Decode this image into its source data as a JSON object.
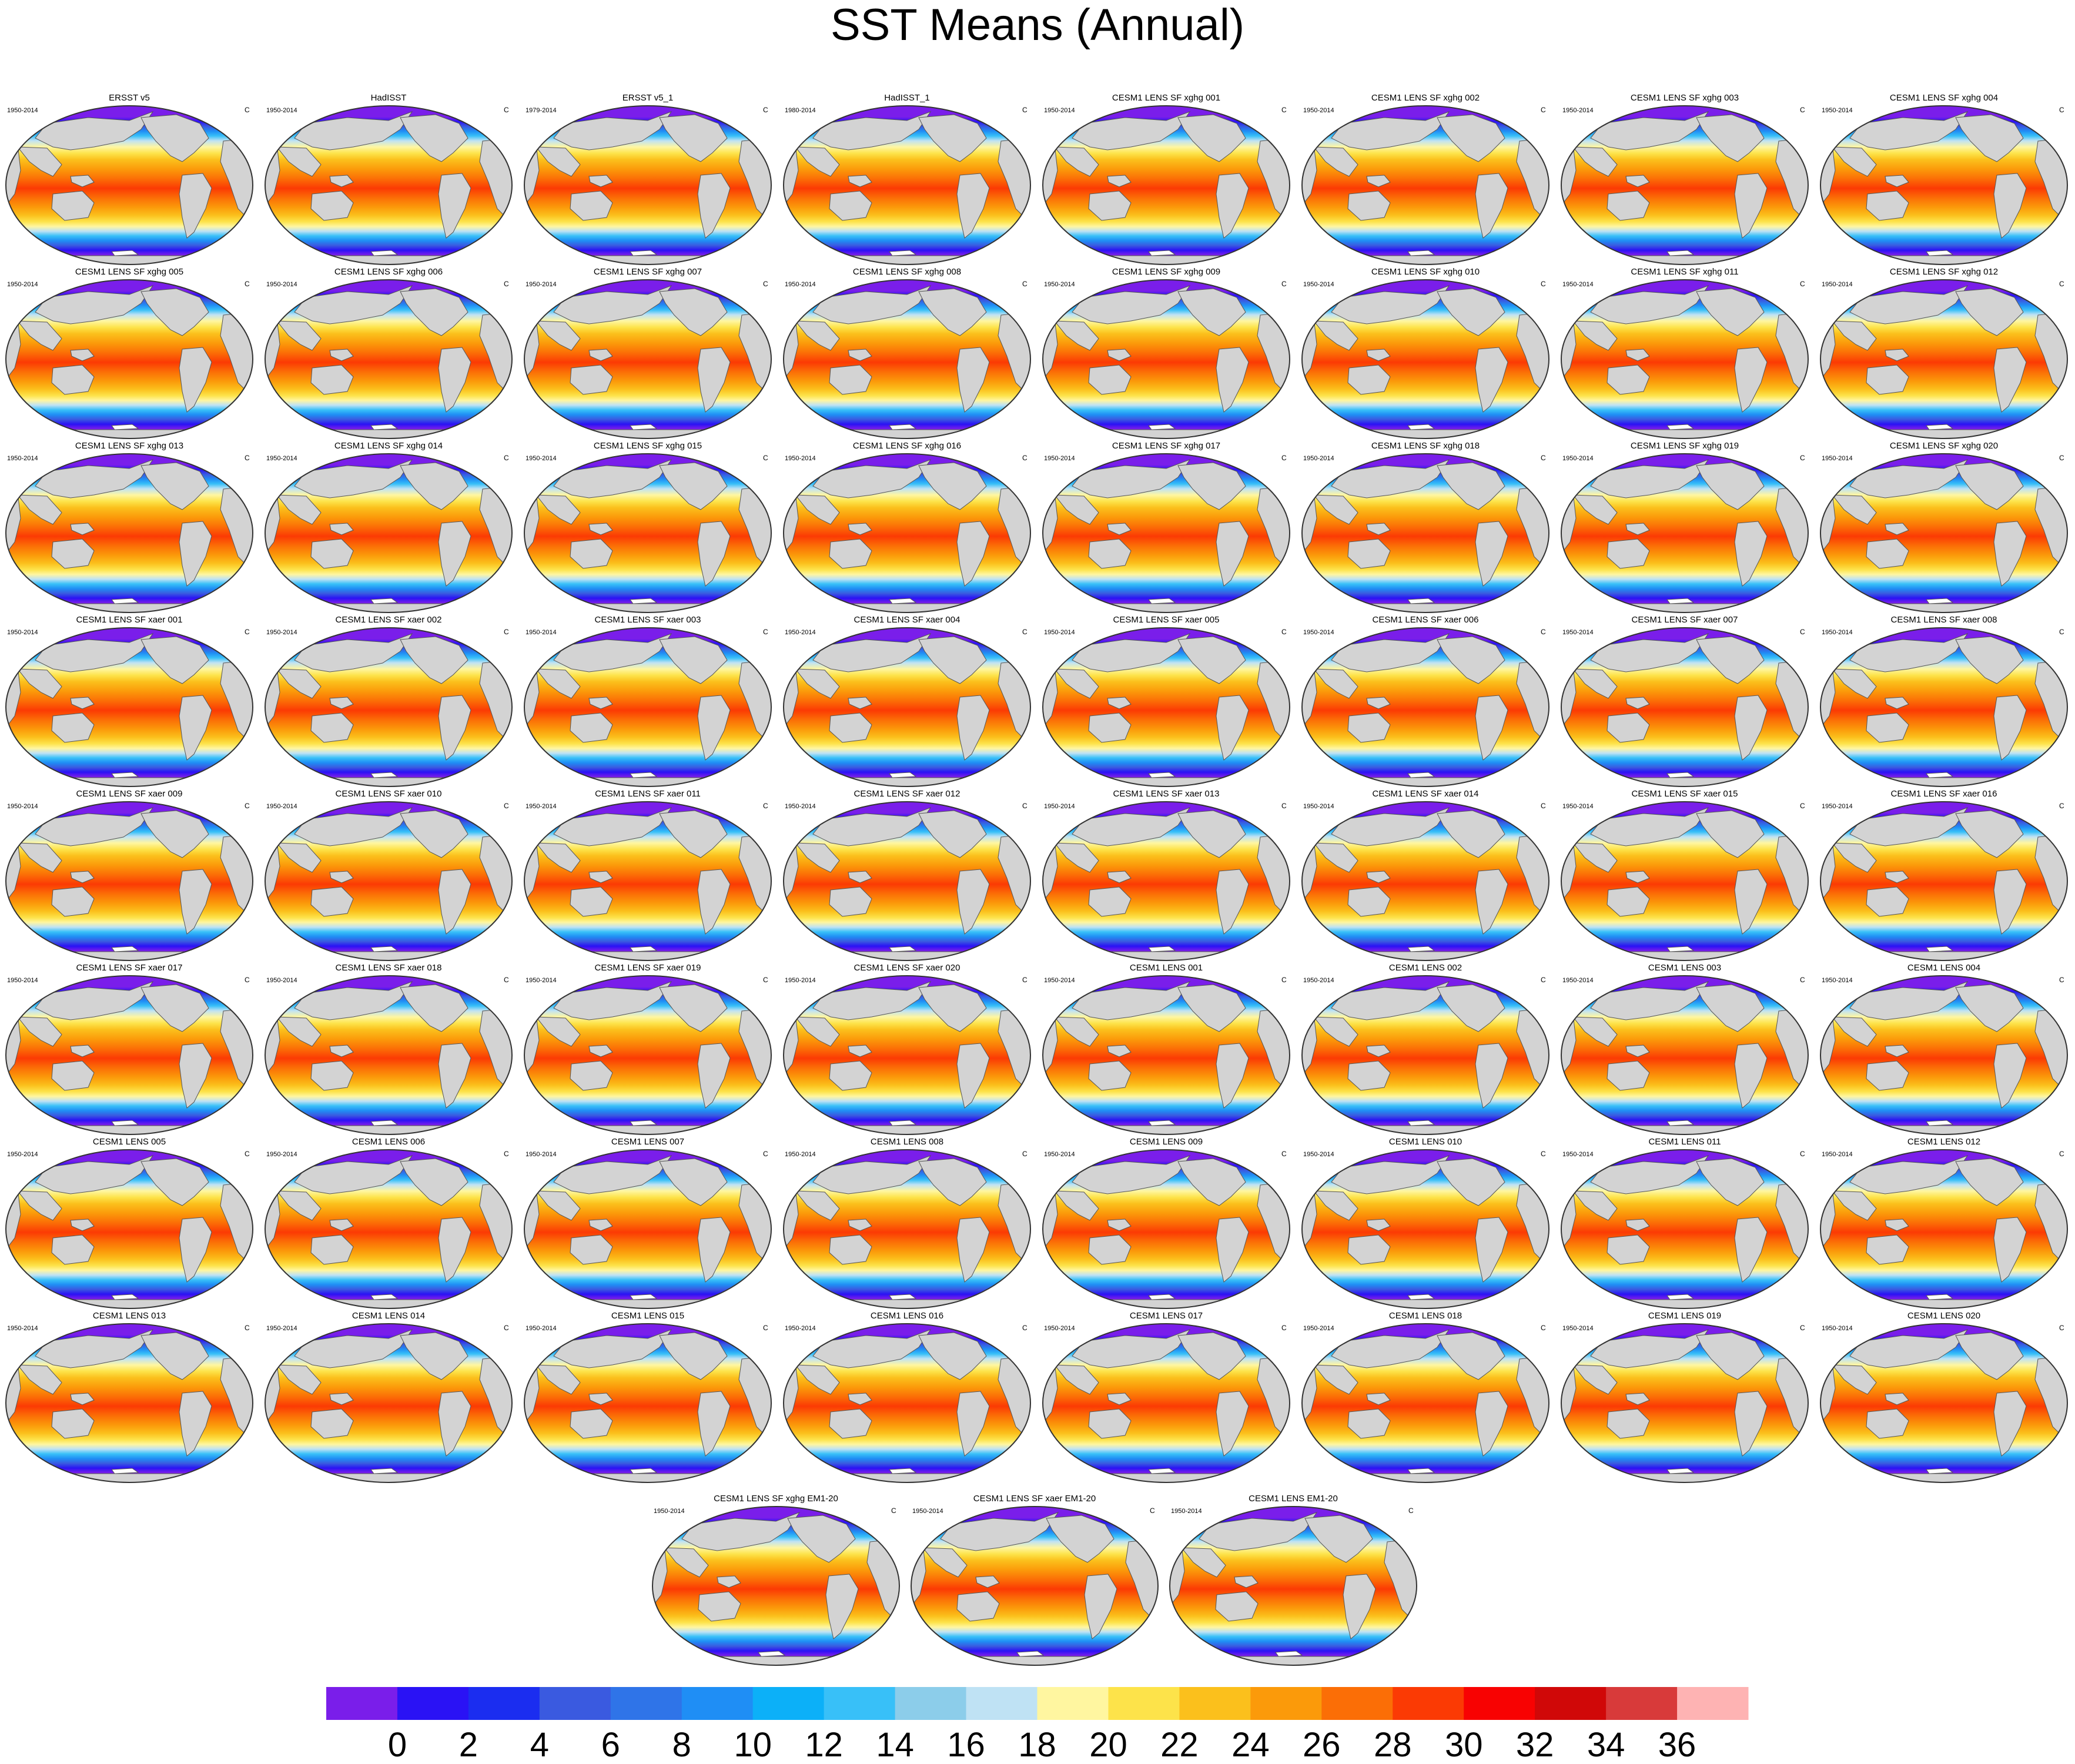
{
  "title": "SST Means (Annual)",
  "units": "C",
  "panels": [
    {
      "name": "ERSST v5",
      "period": "1950-2014"
    },
    {
      "name": "HadISST",
      "period": "1950-2014"
    },
    {
      "name": "ERSST v5_1",
      "period": "1979-2014"
    },
    {
      "name": "HadISST_1",
      "period": "1980-2014"
    },
    {
      "name": "CESM1 LENS SF xghg 001",
      "period": "1950-2014"
    },
    {
      "name": "CESM1 LENS SF xghg 002",
      "period": "1950-2014"
    },
    {
      "name": "CESM1 LENS SF xghg 003",
      "period": "1950-2014"
    },
    {
      "name": "CESM1 LENS SF xghg 004",
      "period": "1950-2014"
    },
    {
      "name": "CESM1 LENS SF xghg 005",
      "period": "1950-2014"
    },
    {
      "name": "CESM1 LENS SF xghg 006",
      "period": "1950-2014"
    },
    {
      "name": "CESM1 LENS SF xghg 007",
      "period": "1950-2014"
    },
    {
      "name": "CESM1 LENS SF xghg 008",
      "period": "1950-2014"
    },
    {
      "name": "CESM1 LENS SF xghg 009",
      "period": "1950-2014"
    },
    {
      "name": "CESM1 LENS SF xghg 010",
      "period": "1950-2014"
    },
    {
      "name": "CESM1 LENS SF xghg 011",
      "period": "1950-2014"
    },
    {
      "name": "CESM1 LENS SF xghg 012",
      "period": "1950-2014"
    },
    {
      "name": "CESM1 LENS SF xghg 013",
      "period": "1950-2014"
    },
    {
      "name": "CESM1 LENS SF xghg 014",
      "period": "1950-2014"
    },
    {
      "name": "CESM1 LENS SF xghg 015",
      "period": "1950-2014"
    },
    {
      "name": "CESM1 LENS SF xghg 016",
      "period": "1950-2014"
    },
    {
      "name": "CESM1 LENS SF xghg 017",
      "period": "1950-2014"
    },
    {
      "name": "CESM1 LENS SF xghg 018",
      "period": "1950-2014"
    },
    {
      "name": "CESM1 LENS SF xghg 019",
      "period": "1950-2014"
    },
    {
      "name": "CESM1 LENS SF xghg 020",
      "period": "1950-2014"
    },
    {
      "name": "CESM1 LENS SF xaer 001",
      "period": "1950-2014"
    },
    {
      "name": "CESM1 LENS SF xaer 002",
      "period": "1950-2014"
    },
    {
      "name": "CESM1 LENS SF xaer 003",
      "period": "1950-2014"
    },
    {
      "name": "CESM1 LENS SF xaer 004",
      "period": "1950-2014"
    },
    {
      "name": "CESM1 LENS SF xaer 005",
      "period": "1950-2014"
    },
    {
      "name": "CESM1 LENS SF xaer 006",
      "period": "1950-2014"
    },
    {
      "name": "CESM1 LENS SF xaer 007",
      "period": "1950-2014"
    },
    {
      "name": "CESM1 LENS SF xaer 008",
      "period": "1950-2014"
    },
    {
      "name": "CESM1 LENS SF xaer 009",
      "period": "1950-2014"
    },
    {
      "name": "CESM1 LENS SF xaer 010",
      "period": "1950-2014"
    },
    {
      "name": "CESM1 LENS SF xaer 011",
      "period": "1950-2014"
    },
    {
      "name": "CESM1 LENS SF xaer 012",
      "period": "1950-2014"
    },
    {
      "name": "CESM1 LENS SF xaer 013",
      "period": "1950-2014"
    },
    {
      "name": "CESM1 LENS SF xaer 014",
      "period": "1950-2014"
    },
    {
      "name": "CESM1 LENS SF xaer 015",
      "period": "1950-2014"
    },
    {
      "name": "CESM1 LENS SF xaer 016",
      "period": "1950-2014"
    },
    {
      "name": "CESM1 LENS SF xaer 017",
      "period": "1950-2014"
    },
    {
      "name": "CESM1 LENS SF xaer 018",
      "period": "1950-2014"
    },
    {
      "name": "CESM1 LENS SF xaer 019",
      "period": "1950-2014"
    },
    {
      "name": "CESM1 LENS SF xaer 020",
      "period": "1950-2014"
    },
    {
      "name": "CESM1 LENS 001",
      "period": "1950-2014"
    },
    {
      "name": "CESM1 LENS 002",
      "period": "1950-2014"
    },
    {
      "name": "CESM1 LENS 003",
      "period": "1950-2014"
    },
    {
      "name": "CESM1 LENS 004",
      "period": "1950-2014"
    },
    {
      "name": "CESM1 LENS 005",
      "period": "1950-2014"
    },
    {
      "name": "CESM1 LENS 006",
      "period": "1950-2014"
    },
    {
      "name": "CESM1 LENS 007",
      "period": "1950-2014"
    },
    {
      "name": "CESM1 LENS 008",
      "period": "1950-2014"
    },
    {
      "name": "CESM1 LENS 009",
      "period": "1950-2014"
    },
    {
      "name": "CESM1 LENS 010",
      "period": "1950-2014"
    },
    {
      "name": "CESM1 LENS 011",
      "period": "1950-2014"
    },
    {
      "name": "CESM1 LENS 012",
      "period": "1950-2014"
    },
    {
      "name": "CESM1 LENS 013",
      "period": "1950-2014"
    },
    {
      "name": "CESM1 LENS 014",
      "period": "1950-2014"
    },
    {
      "name": "CESM1 LENS 015",
      "period": "1950-2014"
    },
    {
      "name": "CESM1 LENS 016",
      "period": "1950-2014"
    },
    {
      "name": "CESM1 LENS 017",
      "period": "1950-2014"
    },
    {
      "name": "CESM1 LENS 018",
      "period": "1950-2014"
    },
    {
      "name": "CESM1 LENS 019",
      "period": "1950-2014"
    },
    {
      "name": "CESM1 LENS 020",
      "period": "1950-2014"
    },
    {
      "name": "CESM1 LENS SF xghg EM1-20",
      "period": "1950-2014"
    },
    {
      "name": "CESM1 LENS SF xaer EM1-20",
      "period": "1950-2014"
    },
    {
      "name": "CESM1 LENS EM1-20",
      "period": "1950-2014"
    }
  ],
  "colorbar": {
    "labels": [
      "0",
      "2",
      "4",
      "6",
      "8",
      "10",
      "12",
      "14",
      "16",
      "18",
      "20",
      "22",
      "24",
      "26",
      "28",
      "30",
      "32",
      "34",
      "36"
    ],
    "colors": [
      "#7a1eea",
      "#2a12f5",
      "#1b2df0",
      "#3a5ae0",
      "#2f74e8",
      "#1f8ef5",
      "#0cb0f8",
      "#38c0f8",
      "#8ccdea",
      "#bfe2f4",
      "#fff6a0",
      "#fde34a",
      "#fbc01c",
      "#fb9a0a",
      "#fb6e06",
      "#fb3a04",
      "#f80202",
      "#d00808",
      "#d83a3a",
      "#feb3b3"
    ]
  }
}
